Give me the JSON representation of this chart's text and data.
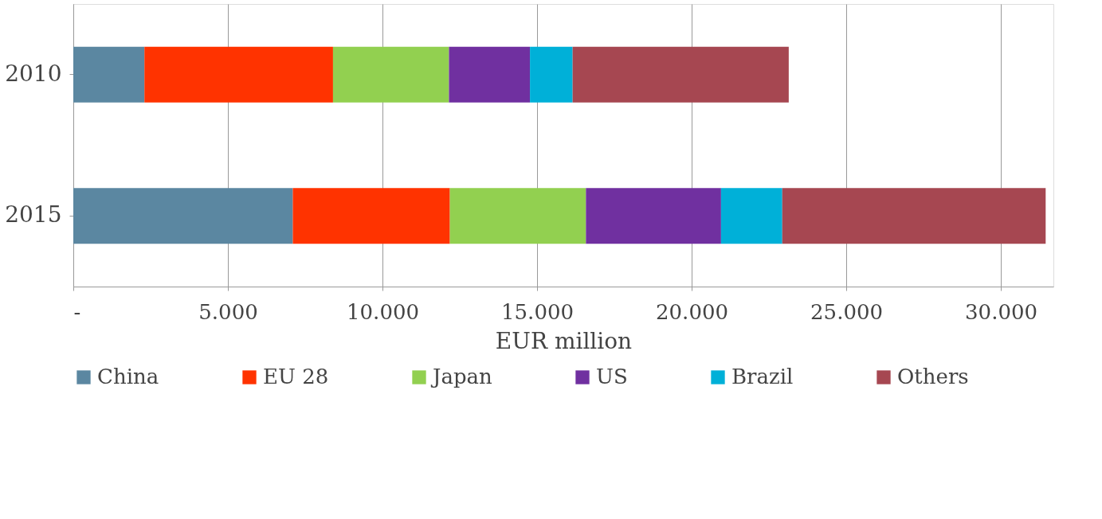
{
  "chart_data": {
    "type": "bar",
    "orientation": "horizontal",
    "stacked": true,
    "categories": [
      "2010",
      "2015"
    ],
    "xlabel": "EUR million",
    "xlim": [
      0,
      31700
    ],
    "xticks": [
      {
        "value": 0,
        "label": "-"
      },
      {
        "value": 5000,
        "label": "5.000"
      },
      {
        "value": 10000,
        "label": "10.000"
      },
      {
        "value": 15000,
        "label": "15.000"
      },
      {
        "value": 20000,
        "label": "20.000"
      },
      {
        "value": 25000,
        "label": "25.000"
      },
      {
        "value": 30000,
        "label": "30.000"
      }
    ],
    "grid": "x",
    "legend": "bottom",
    "series": [
      {
        "name": "China",
        "color": "#5b87a1",
        "values": [
          2300,
          7100
        ]
      },
      {
        "name": "EU 28",
        "color": "#ff3300",
        "values": [
          6100,
          5080
        ]
      },
      {
        "name": "Japan",
        "color": "#92d050",
        "values": [
          3750,
          4400
        ]
      },
      {
        "name": "US",
        "color": "#7030a0",
        "values": [
          2620,
          4370
        ]
      },
      {
        "name": "Brazil",
        "color": "#00b0d8",
        "values": [
          1380,
          1980
        ]
      },
      {
        "name": "Others",
        "color": "#a64751",
        "values": [
          6990,
          8520
        ]
      }
    ]
  }
}
